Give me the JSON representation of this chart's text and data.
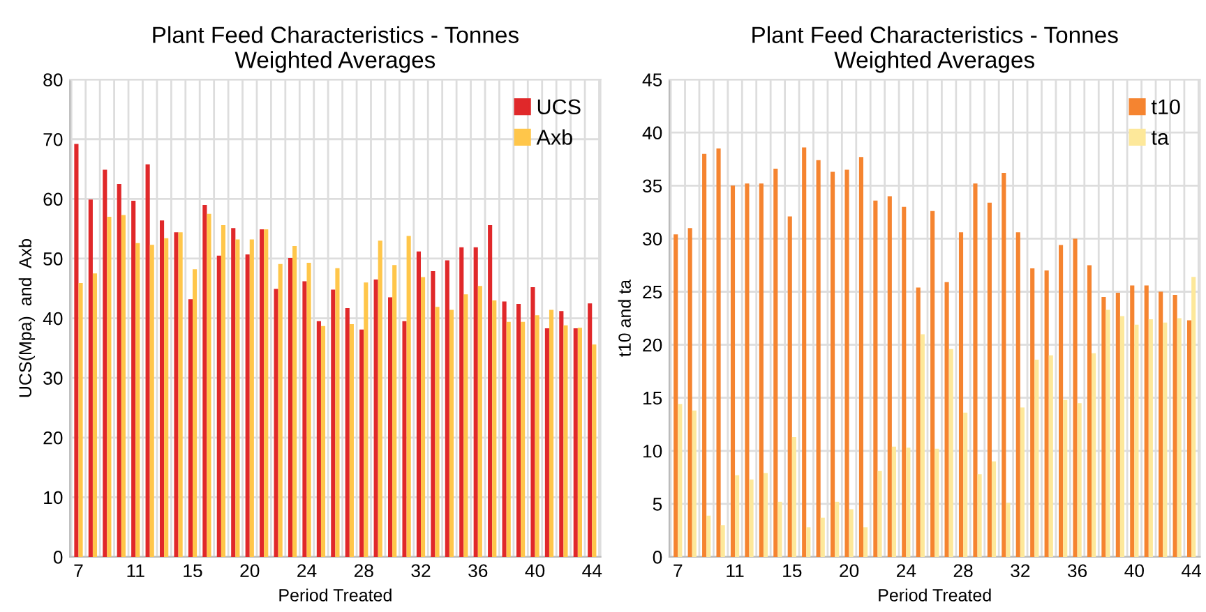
{
  "chart_data": [
    {
      "type": "bar",
      "title": "Plant Feed Characteristics - Tonnes\nWeighted Averages",
      "xlabel": "Period Treated",
      "ylabel": "UCS(Mpa)  and  Axb",
      "categories": [
        "7",
        null,
        null,
        null,
        "11",
        null,
        null,
        null,
        "15",
        null,
        null,
        null,
        "20",
        null,
        null,
        null,
        "24",
        null,
        null,
        null,
        "28",
        null,
        null,
        null,
        "32",
        null,
        null,
        null,
        "36",
        null,
        null,
        null,
        "40",
        null,
        null,
        null,
        "44"
      ],
      "series": [
        {
          "name": "UCS",
          "color": "#e0282a",
          "values": [
            69.2,
            59.9,
            64.9,
            62.5,
            59.7,
            65.8,
            56.4,
            54.4,
            43.2,
            59.0,
            50.5,
            55.1,
            50.7,
            54.9,
            44.9,
            50.1,
            46.2,
            39.5,
            44.8,
            41.7,
            38.1,
            46.5,
            43.5,
            39.5,
            51.2,
            47.9,
            49.7,
            51.9,
            51.9,
            55.6,
            42.8,
            42.4,
            45.2,
            38.3,
            41.2,
            38.3,
            42.5
          ]
        },
        {
          "name": "Axb",
          "color": "#ffc64a",
          "values": [
            45.9,
            47.5,
            57.0,
            57.3,
            52.6,
            52.3,
            53.4,
            54.4,
            48.2,
            57.5,
            55.6,
            53.2,
            53.2,
            54.9,
            49.1,
            52.1,
            49.3,
            38.7,
            48.4,
            39.0,
            46.0,
            53.0,
            48.9,
            53.8,
            46.9,
            41.9,
            41.4,
            44.0,
            45.4,
            43.0,
            39.4,
            39.4,
            40.5,
            41.4,
            38.8,
            38.4,
            35.6
          ]
        }
      ],
      "ylim": [
        0,
        80
      ],
      "yticks": [
        0,
        10,
        20,
        30,
        40,
        50,
        60,
        70,
        80
      ],
      "grid": true,
      "legend": "top right"
    },
    {
      "type": "bar",
      "title": "Plant Feed Characteristics - Tonnes\nWeighted Averages",
      "xlabel": "Period Treated",
      "ylabel": "t10 and ta",
      "categories": [
        "7",
        null,
        null,
        null,
        "11",
        null,
        null,
        null,
        "15",
        null,
        null,
        null,
        "20",
        null,
        null,
        null,
        "24",
        null,
        null,
        null,
        "28",
        null,
        null,
        null,
        "32",
        null,
        null,
        null,
        "36",
        null,
        null,
        null,
        "40",
        null,
        null,
        null,
        "44"
      ],
      "series": [
        {
          "name": "t10",
          "color": "#f58430",
          "values": [
            30.4,
            31.0,
            38.0,
            38.5,
            35.0,
            35.2,
            35.2,
            36.6,
            32.1,
            38.6,
            37.4,
            36.3,
            36.5,
            37.7,
            33.6,
            34.0,
            33.0,
            25.4,
            32.6,
            25.9,
            30.6,
            35.2,
            33.4,
            36.2,
            30.6,
            27.2,
            27.0,
            29.4,
            30.0,
            27.5,
            24.5,
            24.9,
            25.6,
            25.6,
            25.0,
            24.7,
            22.3
          ]
        },
        {
          "name": "ta",
          "color": "#fde89a",
          "values": [
            14.4,
            13.8,
            3.9,
            3.0,
            7.7,
            7.3,
            7.9,
            5.2,
            11.3,
            2.8,
            3.7,
            5.2,
            4.5,
            2.8,
            8.1,
            10.4,
            10.3,
            21.0,
            10.2,
            19.6,
            13.6,
            7.8,
            9.0,
            5.1,
            14.1,
            18.6,
            19.0,
            14.8,
            14.5,
            19.2,
            23.3,
            22.7,
            21.9,
            22.4,
            22.1,
            22.5,
            26.4
          ]
        }
      ],
      "ylim": [
        0,
        45
      ],
      "yticks": [
        0,
        5,
        10,
        15,
        20,
        25,
        30,
        35,
        40,
        45
      ],
      "grid": true,
      "legend": "top right"
    }
  ]
}
